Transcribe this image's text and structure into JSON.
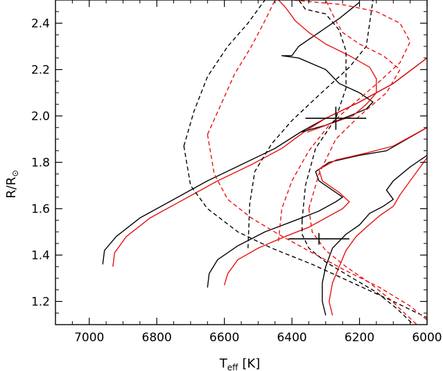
{
  "chart_data": {
    "type": "line",
    "xlabel": "T",
    "xlabel_sub": "eff",
    "xlabel_unit": "[K]",
    "ylabel": "R/R",
    "ylabel_sub": "⊙",
    "xlim": [
      7100,
      6000
    ],
    "ylim": [
      1.1,
      2.5
    ],
    "x_ticks": [
      7000,
      6800,
      6600,
      6400,
      6200,
      6000
    ],
    "y_ticks": [
      1.2,
      1.4,
      1.6,
      1.8,
      2.0,
      2.2,
      2.4
    ],
    "y_tick_labels": [
      "1.2",
      "1.4",
      "1.6",
      "1.8",
      "2.0",
      "2.2",
      "2.4"
    ],
    "grid": false,
    "colors": {
      "black": "#000000",
      "red": "#e8110f"
    },
    "series": [
      {
        "color": "black",
        "dash": false,
        "points": [
          [
            6960,
            1.36
          ],
          [
            6955,
            1.42
          ],
          [
            6920,
            1.48
          ],
          [
            6850,
            1.56
          ],
          [
            6750,
            1.64
          ],
          [
            6650,
            1.72
          ],
          [
            6550,
            1.79
          ],
          [
            6450,
            1.86
          ],
          [
            6375,
            1.93
          ],
          [
            6300,
            1.99
          ],
          [
            6200,
            2.06
          ],
          [
            6100,
            2.14
          ],
          [
            6000,
            2.25
          ]
        ]
      },
      {
        "color": "red",
        "dash": false,
        "points": [
          [
            6930,
            1.35
          ],
          [
            6925,
            1.41
          ],
          [
            6890,
            1.48
          ],
          [
            6820,
            1.56
          ],
          [
            6720,
            1.64
          ],
          [
            6620,
            1.72
          ],
          [
            6520,
            1.79
          ],
          [
            6430,
            1.86
          ],
          [
            6365,
            1.93
          ],
          [
            6300,
            1.99
          ],
          [
            6200,
            2.06
          ],
          [
            6100,
            2.14
          ],
          [
            6000,
            2.25
          ]
        ]
      },
      {
        "color": "black",
        "dash": false,
        "points": [
          [
            6375,
            1.93
          ],
          [
            6300,
            1.96
          ],
          [
            6230,
            2.0
          ],
          [
            6180,
            2.03
          ],
          [
            6160,
            2.06
          ],
          [
            6200,
            2.1
          ],
          [
            6260,
            2.14
          ],
          [
            6300,
            2.2
          ],
          [
            6380,
            2.25
          ],
          [
            6430,
            2.26
          ],
          [
            6400,
            2.26
          ],
          [
            6380,
            2.3
          ],
          [
            6320,
            2.36
          ],
          [
            6260,
            2.42
          ],
          [
            6200,
            2.49
          ]
        ]
      },
      {
        "color": "red",
        "dash": false,
        "points": [
          [
            6355,
            1.93
          ],
          [
            6280,
            1.97
          ],
          [
            6220,
            2.0
          ],
          [
            6180,
            2.05
          ],
          [
            6150,
            2.1
          ],
          [
            6150,
            2.16
          ],
          [
            6170,
            2.21
          ],
          [
            6230,
            2.26
          ],
          [
            6300,
            2.31
          ],
          [
            6350,
            2.36
          ],
          [
            6390,
            2.41
          ],
          [
            6420,
            2.47
          ],
          [
            6440,
            2.5
          ]
        ]
      },
      {
        "color": "black",
        "dash": false,
        "points": [
          [
            6650,
            1.26
          ],
          [
            6645,
            1.32
          ],
          [
            6620,
            1.38
          ],
          [
            6560,
            1.44
          ],
          [
            6480,
            1.5
          ],
          [
            6390,
            1.55
          ],
          [
            6320,
            1.59
          ],
          [
            6270,
            1.63
          ],
          [
            6250,
            1.65
          ],
          [
            6280,
            1.68
          ],
          [
            6320,
            1.72
          ],
          [
            6330,
            1.76
          ],
          [
            6290,
            1.8
          ],
          [
            6200,
            1.83
          ],
          [
            6120,
            1.85
          ],
          [
            6000,
            1.95
          ]
        ]
      },
      {
        "color": "red",
        "dash": false,
        "points": [
          [
            6600,
            1.27
          ],
          [
            6590,
            1.32
          ],
          [
            6560,
            1.38
          ],
          [
            6500,
            1.43
          ],
          [
            6420,
            1.48
          ],
          [
            6350,
            1.52
          ],
          [
            6300,
            1.56
          ],
          [
            6250,
            1.6
          ],
          [
            6230,
            1.63
          ],
          [
            6260,
            1.67
          ],
          [
            6310,
            1.72
          ],
          [
            6320,
            1.77
          ],
          [
            6270,
            1.81
          ],
          [
            6180,
            1.84
          ],
          [
            6100,
            1.87
          ],
          [
            6000,
            1.95
          ]
        ]
      },
      {
        "color": "black",
        "dash": false,
        "points": [
          [
            6300,
            1.14
          ],
          [
            6310,
            1.2
          ],
          [
            6310,
            1.28
          ],
          [
            6300,
            1.35
          ],
          [
            6280,
            1.43
          ],
          [
            6240,
            1.49
          ],
          [
            6200,
            1.53
          ],
          [
            6170,
            1.58
          ],
          [
            6130,
            1.61
          ],
          [
            6100,
            1.64
          ],
          [
            6120,
            1.68
          ],
          [
            6100,
            1.72
          ],
          [
            6050,
            1.78
          ],
          [
            6000,
            1.83
          ]
        ]
      },
      {
        "color": "red",
        "dash": false,
        "points": [
          [
            6280,
            1.14
          ],
          [
            6290,
            1.2
          ],
          [
            6280,
            1.28
          ],
          [
            6260,
            1.35
          ],
          [
            6240,
            1.42
          ],
          [
            6210,
            1.48
          ],
          [
            6180,
            1.52
          ],
          [
            6140,
            1.57
          ],
          [
            6100,
            1.61
          ],
          [
            6080,
            1.66
          ],
          [
            6040,
            1.74
          ],
          [
            6000,
            1.82
          ]
        ]
      },
      {
        "color": "black",
        "dash": true,
        "points": [
          [
            6720,
            1.87
          ],
          [
            6700,
            1.7
          ],
          [
            6650,
            1.6
          ],
          [
            6560,
            1.5
          ],
          [
            6460,
            1.43
          ],
          [
            6340,
            1.36
          ],
          [
            6220,
            1.28
          ],
          [
            6100,
            1.2
          ],
          [
            6000,
            1.13
          ]
        ]
      },
      {
        "color": "red",
        "dash": true,
        "points": [
          [
            6650,
            1.92
          ],
          [
            6630,
            1.75
          ],
          [
            6590,
            1.64
          ],
          [
            6520,
            1.56
          ],
          [
            6440,
            1.49
          ],
          [
            6340,
            1.41
          ],
          [
            6250,
            1.34
          ],
          [
            6140,
            1.26
          ],
          [
            6050,
            1.18
          ],
          [
            6000,
            1.12
          ]
        ]
      },
      {
        "color": "black",
        "dash": true,
        "points": [
          [
            6720,
            1.87
          ],
          [
            6690,
            2.02
          ],
          [
            6650,
            2.17
          ],
          [
            6590,
            2.3
          ],
          [
            6530,
            2.4
          ],
          [
            6480,
            2.5
          ]
        ]
      },
      {
        "color": "red",
        "dash": true,
        "points": [
          [
            6650,
            1.92
          ],
          [
            6610,
            2.05
          ],
          [
            6570,
            2.18
          ],
          [
            6520,
            2.3
          ],
          [
            6480,
            2.41
          ],
          [
            6450,
            2.5
          ]
        ]
      },
      {
        "color": "black",
        "dash": true,
        "points": [
          [
            6530,
            1.43
          ],
          [
            6525,
            1.62
          ],
          [
            6510,
            1.76
          ],
          [
            6460,
            1.88
          ],
          [
            6400,
            1.98
          ],
          [
            6320,
            2.09
          ],
          [
            6230,
            2.21
          ],
          [
            6180,
            2.3
          ],
          [
            6170,
            2.4
          ],
          [
            6160,
            2.5
          ]
        ]
      },
      {
        "color": "red",
        "dash": true,
        "points": [
          [
            6440,
            1.46
          ],
          [
            6430,
            1.6
          ],
          [
            6400,
            1.72
          ],
          [
            6350,
            1.85
          ],
          [
            6290,
            1.96
          ],
          [
            6220,
            2.05
          ],
          [
            6140,
            2.15
          ],
          [
            6080,
            2.23
          ],
          [
            6050,
            2.32
          ],
          [
            6080,
            2.4
          ],
          [
            6150,
            2.45
          ],
          [
            6250,
            2.48
          ],
          [
            6400,
            2.5
          ]
        ]
      },
      {
        "color": "black",
        "dash": true,
        "points": [
          [
            6370,
            1.55
          ],
          [
            6370,
            1.49
          ],
          [
            6350,
            1.43
          ],
          [
            6300,
            1.37
          ],
          [
            6220,
            1.3
          ],
          [
            6150,
            1.24
          ],
          [
            6090,
            1.17
          ],
          [
            6040,
            1.1
          ]
        ]
      },
      {
        "color": "red",
        "dash": true,
        "points": [
          [
            6350,
            1.6
          ],
          [
            6340,
            1.5
          ],
          [
            6300,
            1.42
          ],
          [
            6240,
            1.35
          ],
          [
            6170,
            1.28
          ],
          [
            6110,
            1.21
          ],
          [
            6060,
            1.14
          ],
          [
            6030,
            1.1
          ]
        ]
      },
      {
        "color": "black",
        "dash": true,
        "points": [
          [
            6370,
            1.55
          ],
          [
            6360,
            1.7
          ],
          [
            6330,
            1.86
          ],
          [
            6270,
            1.99
          ],
          [
            6240,
            2.12
          ],
          [
            6240,
            2.28
          ],
          [
            6260,
            2.37
          ],
          [
            6300,
            2.44
          ],
          [
            6360,
            2.46
          ],
          [
            6380,
            2.5
          ]
        ]
      },
      {
        "color": "red",
        "dash": true,
        "points": [
          [
            6350,
            1.6
          ],
          [
            6320,
            1.75
          ],
          [
            6270,
            1.9
          ],
          [
            6200,
            2.0
          ],
          [
            6120,
            2.1
          ],
          [
            6080,
            2.2
          ],
          [
            6130,
            2.26
          ],
          [
            6200,
            2.31
          ],
          [
            6250,
            2.36
          ],
          [
            6270,
            2.41
          ],
          [
            6290,
            2.47
          ],
          [
            6300,
            2.5
          ]
        ]
      }
    ],
    "error_bars": [
      {
        "x": 6270,
        "y": 1.99,
        "x_err": 90,
        "y_err": 0.05
      },
      {
        "x": 6320,
        "y": 1.47,
        "x_err": 90,
        "y_err": 0.025
      }
    ]
  }
}
